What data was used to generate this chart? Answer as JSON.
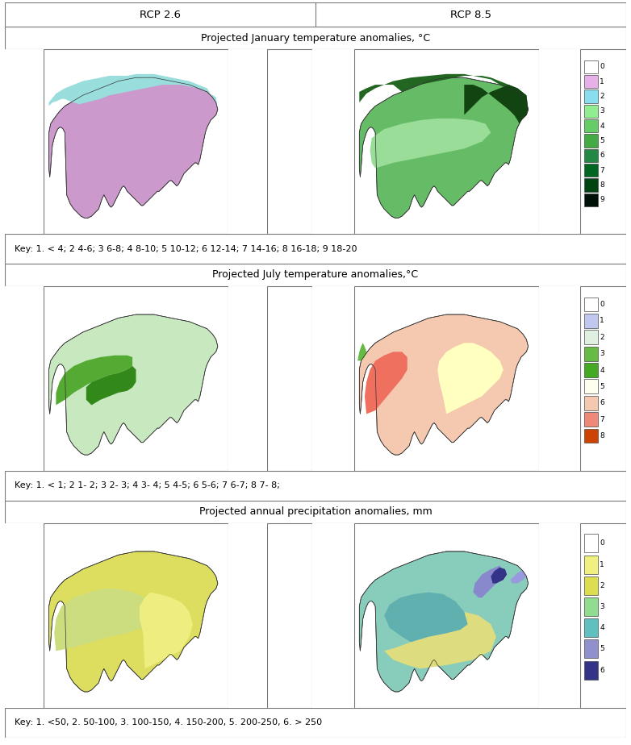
{
  "title_col1": "RCP 2.6",
  "title_col2": "RCP 8.5",
  "row_titles": [
    "Projected January temperature anomalies, °C",
    "Projected July temperature anomalies,°C",
    "Projected annual precipitation anomalies, mm"
  ],
  "key_texts": [
    "Key: 1. < 4; 2 4-6; 3 6-8; 4 8-10; 5 10-12; 6 12-14; 7 14-16; 8 16-18; 9 18-20",
    "Key: 1. < 1; 2 1- 2; 3 2- 3; 4 3- 4; 5 4-5; 6 5-6; 7 6-7; 8 7- 8;",
    "Key: 1. <50, 2. 50-100, 3. 100-150, 4. 150-200, 5. 200-250, 6. > 250"
  ],
  "legend_labels": [
    [
      "0",
      "1",
      "2",
      "3",
      "4",
      "5",
      "6",
      "7",
      "8",
      "9"
    ],
    [
      "0",
      "1",
      "2",
      "3",
      "4",
      "5",
      "6",
      "7",
      "8"
    ],
    [
      "0",
      "1",
      "2",
      "3",
      "4",
      "5",
      "6"
    ]
  ],
  "legend_colors_jan": [
    "#FFFFFF",
    "#E8B4E8",
    "#00FFFF",
    "#90EE90",
    "#66CC66",
    "#44AA44",
    "#228844",
    "#006622",
    "#004400",
    "#001100"
  ],
  "legend_colors_jul": [
    "#FFFFFF",
    "#C0C8F0",
    "#E8F8E8",
    "#66BB44",
    "#44AA22",
    "#FFFFF0",
    "#F5C8B0",
    "#F08070",
    "#CC3300"
  ],
  "legend_colors_precip": [
    "#FFFFFF",
    "#F5F5A0",
    "#DDDD60",
    "#90DD90",
    "#60BBBB",
    "#8888CC",
    "#333388"
  ],
  "background": "#FFFFFF",
  "border_color": "#333333"
}
